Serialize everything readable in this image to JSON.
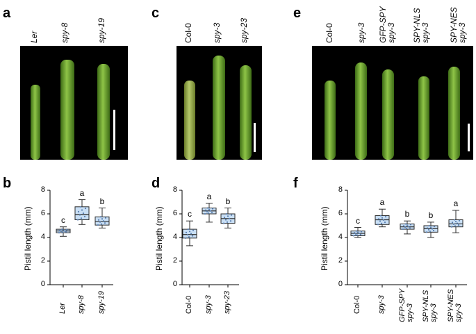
{
  "panels": {
    "a": "a",
    "b": "b",
    "c": "c",
    "d": "d",
    "e": "e",
    "f": "f"
  },
  "photos": {
    "a": {
      "labels": [
        {
          "l1": "Ler",
          "italic": true
        },
        {
          "l1": "spy-8",
          "italic": true
        },
        {
          "l1": "spy-19",
          "italic": true
        }
      ]
    },
    "c": {
      "labels": [
        {
          "l1": "Col-0",
          "italic": false
        },
        {
          "l1": "spy-3",
          "italic": true
        },
        {
          "l1": "spy-23",
          "italic": true
        }
      ]
    },
    "e": {
      "labels": [
        {
          "l1": "Col-0",
          "italic": false
        },
        {
          "l1": "spy-3",
          "italic": true
        },
        {
          "l1": "GFP-SPY",
          "l2": "spy-3",
          "italic": true
        },
        {
          "l1": "SPY-NLS",
          "l2": "spy-3",
          "italic": true
        },
        {
          "l1": "SPY-NES",
          "l2": "spy-3",
          "italic": true
        }
      ]
    }
  },
  "chart_data": [
    {
      "type": "box",
      "panel": "b",
      "ylabel": "Pistil length (mm)",
      "ylim": [
        0,
        8
      ],
      "yticks": [
        0,
        2,
        4,
        6,
        8
      ],
      "categories": [
        {
          "l1": "Ler",
          "italic": true
        },
        {
          "l1": "spy-8",
          "italic": true
        },
        {
          "l1": "spy-19",
          "italic": true
        }
      ],
      "boxes": [
        {
          "min": 4.1,
          "q1": 4.4,
          "median": 4.55,
          "q3": 4.7,
          "max": 4.9
        },
        {
          "min": 5.1,
          "q1": 5.5,
          "median": 5.95,
          "q3": 6.6,
          "max": 7.2
        },
        {
          "min": 4.8,
          "q1": 5.05,
          "median": 5.35,
          "q3": 5.75,
          "max": 6.5
        }
      ],
      "letters": [
        "c",
        "a",
        "b"
      ]
    },
    {
      "type": "box",
      "panel": "d",
      "ylabel": "Pistil length (mm)",
      "ylim": [
        0,
        8
      ],
      "yticks": [
        0,
        2,
        4,
        6,
        8
      ],
      "categories": [
        {
          "l1": "Col-0",
          "italic": false
        },
        {
          "l1": "spy-3",
          "italic": true
        },
        {
          "l1": "spy-23",
          "italic": true
        }
      ],
      "boxes": [
        {
          "min": 3.3,
          "q1": 3.95,
          "median": 4.25,
          "q3": 4.7,
          "max": 5.4
        },
        {
          "min": 5.3,
          "q1": 6.0,
          "median": 6.25,
          "q3": 6.5,
          "max": 6.9
        },
        {
          "min": 4.8,
          "q1": 5.2,
          "median": 5.6,
          "q3": 6.0,
          "max": 6.5
        }
      ],
      "letters": [
        "c",
        "a",
        "b"
      ]
    },
    {
      "type": "box",
      "panel": "f",
      "ylabel": "Pistil length (mm)",
      "ylim": [
        0,
        8
      ],
      "yticks": [
        0,
        2,
        4,
        6,
        8
      ],
      "categories": [
        {
          "l1": "Col-0",
          "italic": false
        },
        {
          "l1": "spy-3",
          "italic": true
        },
        {
          "l1": "GFP-SPY",
          "l2": "spy-3",
          "italic": true
        },
        {
          "l1": "SPY-NLS",
          "l2": "spy-3",
          "italic": true
        },
        {
          "l1": "SPY-NES",
          "l2": "spy-3",
          "italic": true
        }
      ],
      "boxes": [
        {
          "min": 4.0,
          "q1": 4.15,
          "median": 4.35,
          "q3": 4.55,
          "max": 4.85
        },
        {
          "min": 4.9,
          "q1": 5.1,
          "median": 5.5,
          "q3": 5.85,
          "max": 6.4
        },
        {
          "min": 4.3,
          "q1": 4.7,
          "median": 4.9,
          "q3": 5.15,
          "max": 5.4
        },
        {
          "min": 4.0,
          "q1": 4.45,
          "median": 4.75,
          "q3": 5.0,
          "max": 5.3
        },
        {
          "min": 4.4,
          "q1": 4.9,
          "median": 5.15,
          "q3": 5.5,
          "max": 6.3
        }
      ],
      "letters": [
        "c",
        "a",
        "b",
        "b",
        "a"
      ]
    }
  ],
  "colors": {
    "box_fill": "#c9dff5",
    "box_stroke": "#2b2b2b",
    "dot": "#5a7fb0",
    "stem": "#6fa82e"
  }
}
